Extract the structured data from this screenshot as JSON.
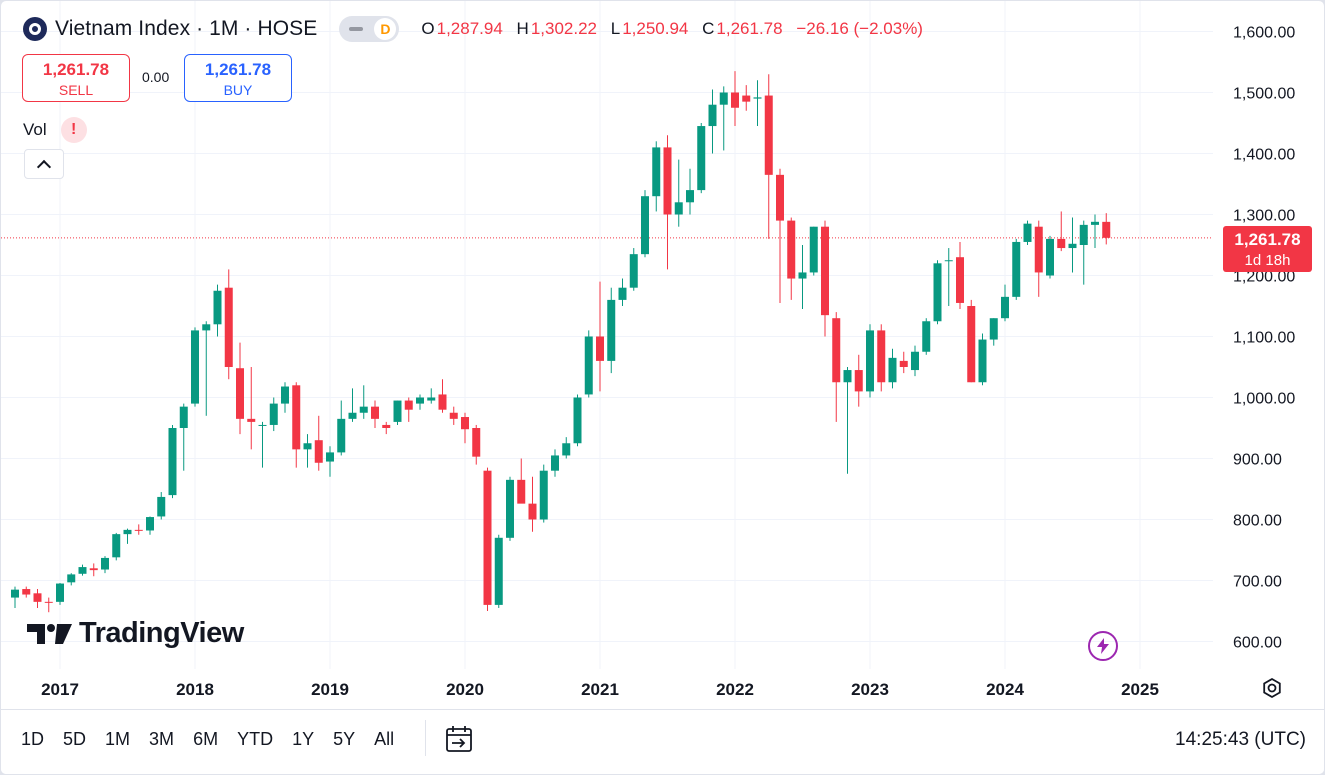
{
  "header": {
    "symbol_title": "Vietnam Index · 1M · HOSE",
    "market_badge": "D",
    "ohlc": {
      "o_label": "O",
      "o_value": "1,287.94",
      "h_label": "H",
      "h_value": "1,302.22",
      "l_label": "L",
      "l_value": "1,250.94",
      "c_label": "C",
      "c_value": "1,261.78",
      "change": "−26.16 (−2.03%)"
    }
  },
  "trade": {
    "sell_price": "1,261.78",
    "sell_label": "SELL",
    "spread": "0.00",
    "buy_price": "1,261.78",
    "buy_label": "BUY"
  },
  "indicators": {
    "vol_label": "Vol",
    "warning": "!"
  },
  "watermark": {
    "text": "TradingView"
  },
  "last_price_tag": {
    "price": "1,261.78",
    "countdown": "1d 18h"
  },
  "bottom_bar": {
    "ranges": [
      "1D",
      "5D",
      "1M",
      "3M",
      "6M",
      "YTD",
      "1Y",
      "5Y",
      "All"
    ],
    "clock": "14:25:43 (UTC)"
  },
  "colors": {
    "up": "#089981",
    "down": "#f23645",
    "accent": "#2962ff",
    "text": "#131722",
    "grid": "#f0f3fa"
  },
  "icons": [
    "vietnam-index-logo-icon",
    "dash-icon",
    "warning-icon",
    "chevron-up-icon",
    "tradingview-logo-icon",
    "bolt-icon",
    "gear-icon",
    "calendar-goto-icon"
  ],
  "chart_data": {
    "type": "candlestick",
    "interval": "1M",
    "title": "Vietnam Index",
    "ylim": [
      560,
      1640
    ],
    "y_ticks": [
      "600.00",
      "700.00",
      "800.00",
      "900.00",
      "1,000.00",
      "1,100.00",
      "1,200.00",
      "1,300.00",
      "1,400.00",
      "1,500.00",
      "1,600.00"
    ],
    "y_tick_values": [
      600,
      700,
      800,
      900,
      1000,
      1100,
      1200,
      1300,
      1400,
      1500,
      1600
    ],
    "x_ticks": [
      "2017",
      "2018",
      "2019",
      "2020",
      "2021",
      "2022",
      "2023",
      "2024",
      "2025"
    ],
    "x_tick_dates": [
      "2017-01",
      "2018-01",
      "2019-01",
      "2020-01",
      "2021-01",
      "2022-01",
      "2023-01",
      "2024-01",
      "2025-01"
    ],
    "x_start": "2016-09",
    "grid": true,
    "last_price_line": 1261.78,
    "candles": [
      {
        "d": "2016-09",
        "o": 672,
        "h": 690,
        "l": 655,
        "c": 685
      },
      {
        "d": "2016-10",
        "o": 686,
        "h": 690,
        "l": 672,
        "c": 677
      },
      {
        "d": "2016-11",
        "o": 679,
        "h": 686,
        "l": 655,
        "c": 665
      },
      {
        "d": "2016-12",
        "o": 665,
        "h": 672,
        "l": 648,
        "c": 664
      },
      {
        "d": "2017-01",
        "o": 665,
        "h": 696,
        "l": 660,
        "c": 695
      },
      {
        "d": "2017-02",
        "o": 697,
        "h": 712,
        "l": 692,
        "c": 710
      },
      {
        "d": "2017-03",
        "o": 711,
        "h": 726,
        "l": 708,
        "c": 722
      },
      {
        "d": "2017-04",
        "o": 720,
        "h": 728,
        "l": 707,
        "c": 717
      },
      {
        "d": "2017-05",
        "o": 718,
        "h": 740,
        "l": 712,
        "c": 737
      },
      {
        "d": "2017-06",
        "o": 738,
        "h": 778,
        "l": 733,
        "c": 776
      },
      {
        "d": "2017-07",
        "o": 776,
        "h": 785,
        "l": 760,
        "c": 783
      },
      {
        "d": "2017-08",
        "o": 783,
        "h": 792,
        "l": 775,
        "c": 782
      },
      {
        "d": "2017-09",
        "o": 782,
        "h": 805,
        "l": 775,
        "c": 804
      },
      {
        "d": "2017-10",
        "o": 805,
        "h": 845,
        "l": 800,
        "c": 837
      },
      {
        "d": "2017-11",
        "o": 840,
        "h": 955,
        "l": 835,
        "c": 950
      },
      {
        "d": "2017-12",
        "o": 950,
        "h": 990,
        "l": 880,
        "c": 985
      },
      {
        "d": "2018-01",
        "o": 990,
        "h": 1115,
        "l": 985,
        "c": 1110
      },
      {
        "d": "2018-02",
        "o": 1110,
        "h": 1125,
        "l": 970,
        "c": 1120
      },
      {
        "d": "2018-03",
        "o": 1120,
        "h": 1185,
        "l": 1100,
        "c": 1175
      },
      {
        "d": "2018-04",
        "o": 1180,
        "h": 1210,
        "l": 1030,
        "c": 1050
      },
      {
        "d": "2018-05",
        "o": 1048,
        "h": 1090,
        "l": 940,
        "c": 965
      },
      {
        "d": "2018-06",
        "o": 965,
        "h": 1050,
        "l": 915,
        "c": 960
      },
      {
        "d": "2018-07",
        "o": 955,
        "h": 960,
        "l": 885,
        "c": 955
      },
      {
        "d": "2018-08",
        "o": 955,
        "h": 1000,
        "l": 945,
        "c": 990
      },
      {
        "d": "2018-09",
        "o": 990,
        "h": 1025,
        "l": 975,
        "c": 1018
      },
      {
        "d": "2018-10",
        "o": 1020,
        "h": 1025,
        "l": 885,
        "c": 915
      },
      {
        "d": "2018-11",
        "o": 915,
        "h": 940,
        "l": 885,
        "c": 925
      },
      {
        "d": "2018-12",
        "o": 930,
        "h": 970,
        "l": 880,
        "c": 893
      },
      {
        "d": "2019-01",
        "o": 895,
        "h": 920,
        "l": 870,
        "c": 910
      },
      {
        "d": "2019-02",
        "o": 910,
        "h": 995,
        "l": 905,
        "c": 965
      },
      {
        "d": "2019-03",
        "o": 965,
        "h": 1015,
        "l": 960,
        "c": 975
      },
      {
        "d": "2019-04",
        "o": 975,
        "h": 1020,
        "l": 965,
        "c": 985
      },
      {
        "d": "2019-05",
        "o": 985,
        "h": 995,
        "l": 950,
        "c": 965
      },
      {
        "d": "2019-06",
        "o": 955,
        "h": 960,
        "l": 940,
        "c": 950
      },
      {
        "d": "2019-07",
        "o": 960,
        "h": 995,
        "l": 955,
        "c": 995
      },
      {
        "d": "2019-08",
        "o": 995,
        "h": 1000,
        "l": 960,
        "c": 980
      },
      {
        "d": "2019-09",
        "o": 990,
        "h": 1005,
        "l": 980,
        "c": 1000
      },
      {
        "d": "2019-10",
        "o": 995,
        "h": 1015,
        "l": 990,
        "c": 1000
      },
      {
        "d": "2019-11",
        "o": 1005,
        "h": 1030,
        "l": 975,
        "c": 980
      },
      {
        "d": "2019-12",
        "o": 975,
        "h": 985,
        "l": 955,
        "c": 965
      },
      {
        "d": "2020-01",
        "o": 968,
        "h": 975,
        "l": 925,
        "c": 948
      },
      {
        "d": "2020-02",
        "o": 950,
        "h": 955,
        "l": 890,
        "c": 903
      },
      {
        "d": "2020-03",
        "o": 880,
        "h": 885,
        "l": 650,
        "c": 660
      },
      {
        "d": "2020-04",
        "o": 660,
        "h": 775,
        "l": 655,
        "c": 770
      },
      {
        "d": "2020-05",
        "o": 770,
        "h": 870,
        "l": 765,
        "c": 865
      },
      {
        "d": "2020-06",
        "o": 865,
        "h": 900,
        "l": 830,
        "c": 826
      },
      {
        "d": "2020-07",
        "o": 826,
        "h": 870,
        "l": 780,
        "c": 800
      },
      {
        "d": "2020-08",
        "o": 800,
        "h": 890,
        "l": 795,
        "c": 880
      },
      {
        "d": "2020-09",
        "o": 880,
        "h": 915,
        "l": 870,
        "c": 905
      },
      {
        "d": "2020-10",
        "o": 905,
        "h": 935,
        "l": 900,
        "c": 925
      },
      {
        "d": "2020-11",
        "o": 925,
        "h": 1005,
        "l": 920,
        "c": 1000
      },
      {
        "d": "2020-12",
        "o": 1005,
        "h": 1110,
        "l": 1000,
        "c": 1100
      },
      {
        "d": "2021-01",
        "o": 1100,
        "h": 1190,
        "l": 1010,
        "c": 1060
      },
      {
        "d": "2021-02",
        "o": 1060,
        "h": 1180,
        "l": 1040,
        "c": 1160
      },
      {
        "d": "2021-03",
        "o": 1160,
        "h": 1195,
        "l": 1150,
        "c": 1180
      },
      {
        "d": "2021-04",
        "o": 1180,
        "h": 1245,
        "l": 1175,
        "c": 1235
      },
      {
        "d": "2021-05",
        "o": 1235,
        "h": 1340,
        "l": 1230,
        "c": 1330
      },
      {
        "d": "2021-06",
        "o": 1330,
        "h": 1420,
        "l": 1305,
        "c": 1410
      },
      {
        "d": "2021-07",
        "o": 1410,
        "h": 1430,
        "l": 1210,
        "c": 1300
      },
      {
        "d": "2021-08",
        "o": 1300,
        "h": 1390,
        "l": 1280,
        "c": 1320
      },
      {
        "d": "2021-09",
        "o": 1320,
        "h": 1375,
        "l": 1300,
        "c": 1340
      },
      {
        "d": "2021-10",
        "o": 1340,
        "h": 1450,
        "l": 1335,
        "c": 1445
      },
      {
        "d": "2021-11",
        "o": 1445,
        "h": 1505,
        "l": 1400,
        "c": 1480
      },
      {
        "d": "2021-12",
        "o": 1480,
        "h": 1510,
        "l": 1405,
        "c": 1500
      },
      {
        "d": "2022-01",
        "o": 1500,
        "h": 1535,
        "l": 1445,
        "c": 1475
      },
      {
        "d": "2022-02",
        "o": 1495,
        "h": 1512,
        "l": 1470,
        "c": 1485
      },
      {
        "d": "2022-03",
        "o": 1490,
        "h": 1520,
        "l": 1445,
        "c": 1492
      },
      {
        "d": "2022-04",
        "o": 1495,
        "h": 1530,
        "l": 1260,
        "c": 1365
      },
      {
        "d": "2022-05",
        "o": 1365,
        "h": 1375,
        "l": 1155,
        "c": 1290
      },
      {
        "d": "2022-06",
        "o": 1290,
        "h": 1295,
        "l": 1160,
        "c": 1195
      },
      {
        "d": "2022-07",
        "o": 1195,
        "h": 1250,
        "l": 1145,
        "c": 1205
      },
      {
        "d": "2022-08",
        "o": 1205,
        "h": 1280,
        "l": 1200,
        "c": 1280
      },
      {
        "d": "2022-09",
        "o": 1280,
        "h": 1290,
        "l": 1100,
        "c": 1135
      },
      {
        "d": "2022-10",
        "o": 1130,
        "h": 1140,
        "l": 960,
        "c": 1025
      },
      {
        "d": "2022-11",
        "o": 1025,
        "h": 1050,
        "l": 875,
        "c": 1045
      },
      {
        "d": "2022-12",
        "o": 1045,
        "h": 1070,
        "l": 985,
        "c": 1010
      },
      {
        "d": "2023-01",
        "o": 1010,
        "h": 1120,
        "l": 1000,
        "c": 1110
      },
      {
        "d": "2023-02",
        "o": 1110,
        "h": 1120,
        "l": 1010,
        "c": 1025
      },
      {
        "d": "2023-03",
        "o": 1025,
        "h": 1080,
        "l": 1015,
        "c": 1065
      },
      {
        "d": "2023-04",
        "o": 1060,
        "h": 1075,
        "l": 1040,
        "c": 1050
      },
      {
        "d": "2023-05",
        "o": 1045,
        "h": 1085,
        "l": 1035,
        "c": 1075
      },
      {
        "d": "2023-06",
        "o": 1075,
        "h": 1130,
        "l": 1070,
        "c": 1125
      },
      {
        "d": "2023-07",
        "o": 1125,
        "h": 1225,
        "l": 1120,
        "c": 1220
      },
      {
        "d": "2023-08",
        "o": 1225,
        "h": 1245,
        "l": 1150,
        "c": 1225
      },
      {
        "d": "2023-09",
        "o": 1230,
        "h": 1255,
        "l": 1145,
        "c": 1155
      },
      {
        "d": "2023-10",
        "o": 1150,
        "h": 1160,
        "l": 1025,
        "c": 1025
      },
      {
        "d": "2023-11",
        "o": 1025,
        "h": 1105,
        "l": 1020,
        "c": 1095
      },
      {
        "d": "2023-12",
        "o": 1095,
        "h": 1130,
        "l": 1085,
        "c": 1130
      },
      {
        "d": "2024-01",
        "o": 1130,
        "h": 1185,
        "l": 1125,
        "c": 1165
      },
      {
        "d": "2024-02",
        "o": 1165,
        "h": 1260,
        "l": 1160,
        "c": 1255
      },
      {
        "d": "2024-03",
        "o": 1255,
        "h": 1290,
        "l": 1250,
        "c": 1285
      },
      {
        "d": "2024-04",
        "o": 1280,
        "h": 1290,
        "l": 1165,
        "c": 1205
      },
      {
        "d": "2024-05",
        "o": 1200,
        "h": 1265,
        "l": 1195,
        "c": 1260
      },
      {
        "d": "2024-06",
        "o": 1260,
        "h": 1305,
        "l": 1240,
        "c": 1245
      },
      {
        "d": "2024-07",
        "o": 1245,
        "h": 1295,
        "l": 1205,
        "c": 1252
      },
      {
        "d": "2024-08",
        "o": 1250,
        "h": 1290,
        "l": 1185,
        "c": 1283
      },
      {
        "d": "2024-09",
        "o": 1283,
        "h": 1300,
        "l": 1245,
        "c": 1288
      },
      {
        "d": "2024-10",
        "o": 1287.94,
        "h": 1302.22,
        "l": 1250.94,
        "c": 1261.78
      }
    ]
  }
}
